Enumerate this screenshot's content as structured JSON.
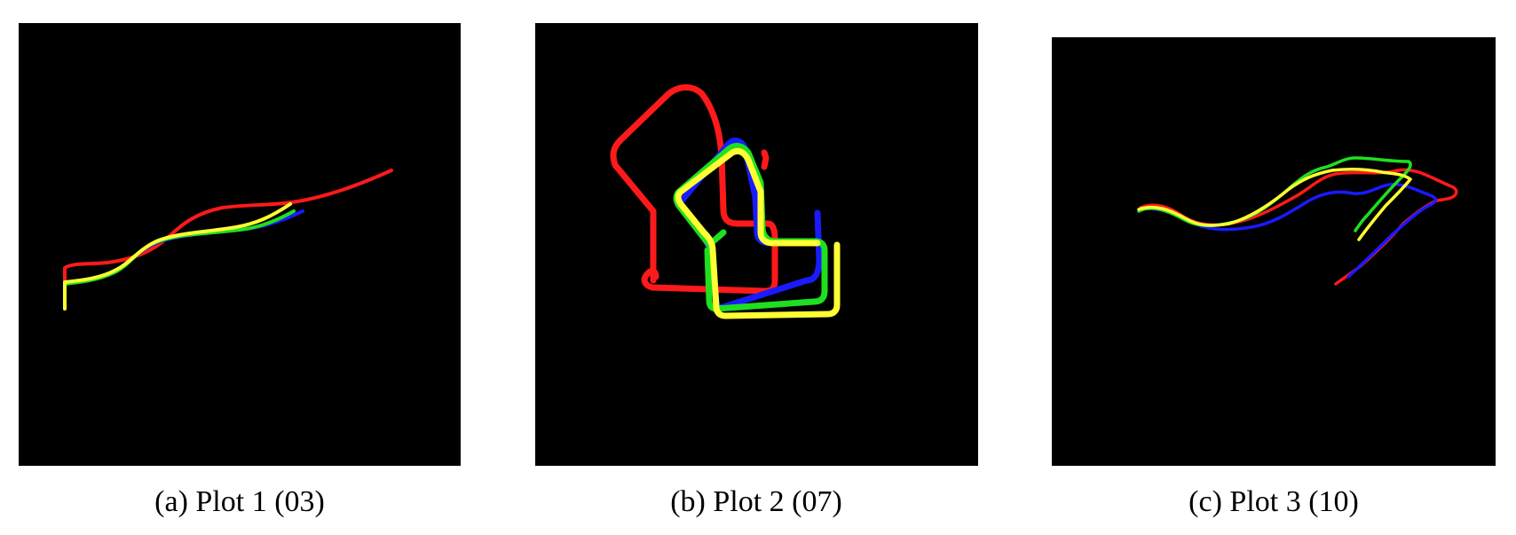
{
  "colors": {
    "background": "#000000",
    "red": "#ff1a1a",
    "blue": "#1a1aff",
    "green": "#1fe01f",
    "yellow": "#ffff33"
  },
  "panels": [
    {
      "id": "a",
      "caption": "(a) Plot 1 (03)",
      "series": [
        "red",
        "blue",
        "green",
        "yellow"
      ]
    },
    {
      "id": "b",
      "caption": "(b) Plot 2 (07)",
      "series": [
        "red",
        "blue",
        "green",
        "yellow"
      ]
    },
    {
      "id": "c",
      "caption": "(c) Plot 3 (10)",
      "series": [
        "red",
        "blue",
        "green",
        "yellow"
      ]
    }
  ]
}
